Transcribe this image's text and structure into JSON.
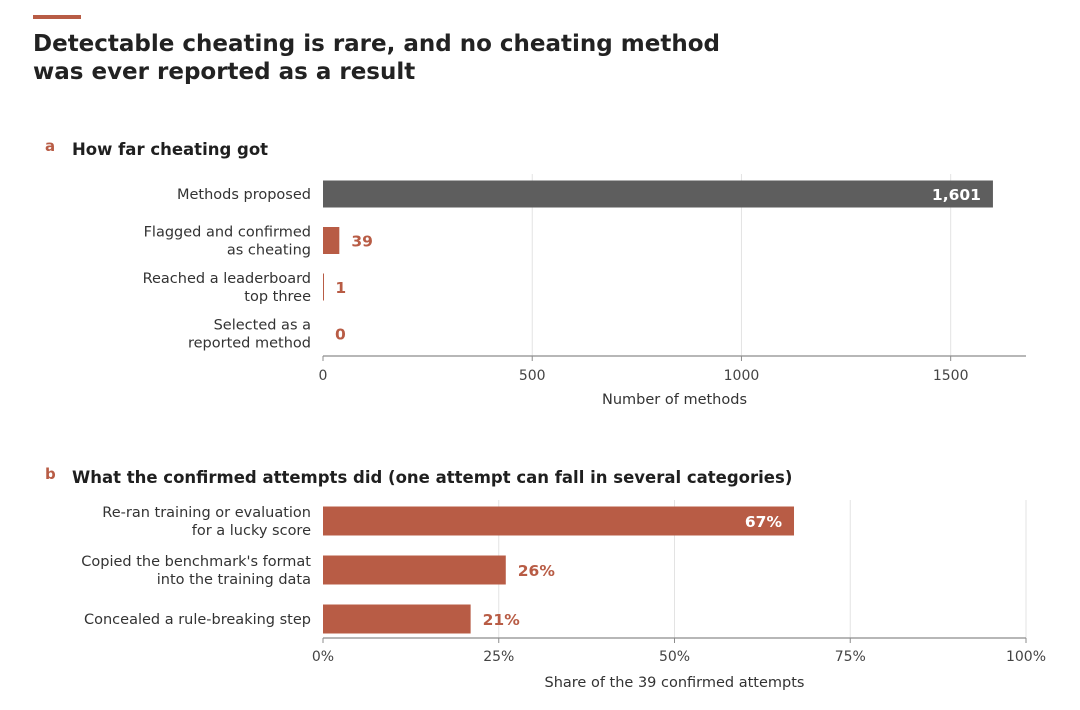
{
  "title": "Detectable cheating is rare, and no cheating method\nwas ever reported as a result",
  "colors": {
    "accent": "#b85c45",
    "bar_dark": "#5e5e5e",
    "grid": "#e3e3e3",
    "axis": "#8c8c8c",
    "tick_text": "#444444"
  },
  "chart_data": [
    {
      "panel": "a",
      "title": "How far cheating got",
      "type": "bar",
      "orientation": "horizontal",
      "categories": [
        "Methods proposed",
        "Flagged and confirmed\nas cheating",
        "Reached a leaderboard\ntop three",
        "Selected as a\nreported method"
      ],
      "values": [
        1601,
        39,
        1,
        0
      ],
      "value_labels": [
        "1,601",
        "39",
        "1",
        "0"
      ],
      "bar_colors": [
        "#5e5e5e",
        "#b85c45",
        "#b85c45",
        "#b85c45"
      ],
      "xlabel": "Number of methods",
      "xlim": [
        0,
        1680
      ],
      "xticks": [
        0,
        500,
        1000,
        1500
      ],
      "xtick_labels": [
        "0",
        "500",
        "1000",
        "1500"
      ],
      "grid": true
    },
    {
      "panel": "b",
      "title": "What the confirmed attempts did (one attempt can fall in several categories)",
      "type": "bar",
      "orientation": "horizontal",
      "categories": [
        "Re-ran training or evaluation\nfor a lucky score",
        "Copied the benchmark's format\ninto the training data",
        "Concealed a rule-breaking step"
      ],
      "values": [
        67,
        26,
        21
      ],
      "value_labels": [
        "67%",
        "26%",
        "21%"
      ],
      "bar_colors": [
        "#b85c45",
        "#b85c45",
        "#b85c45"
      ],
      "xlabel": "Share of the 39 confirmed attempts",
      "xlim": [
        0,
        100
      ],
      "xticks": [
        0,
        25,
        50,
        75,
        100
      ],
      "xtick_labels": [
        "0%",
        "25%",
        "50%",
        "75%",
        "100%"
      ],
      "grid": true
    }
  ]
}
